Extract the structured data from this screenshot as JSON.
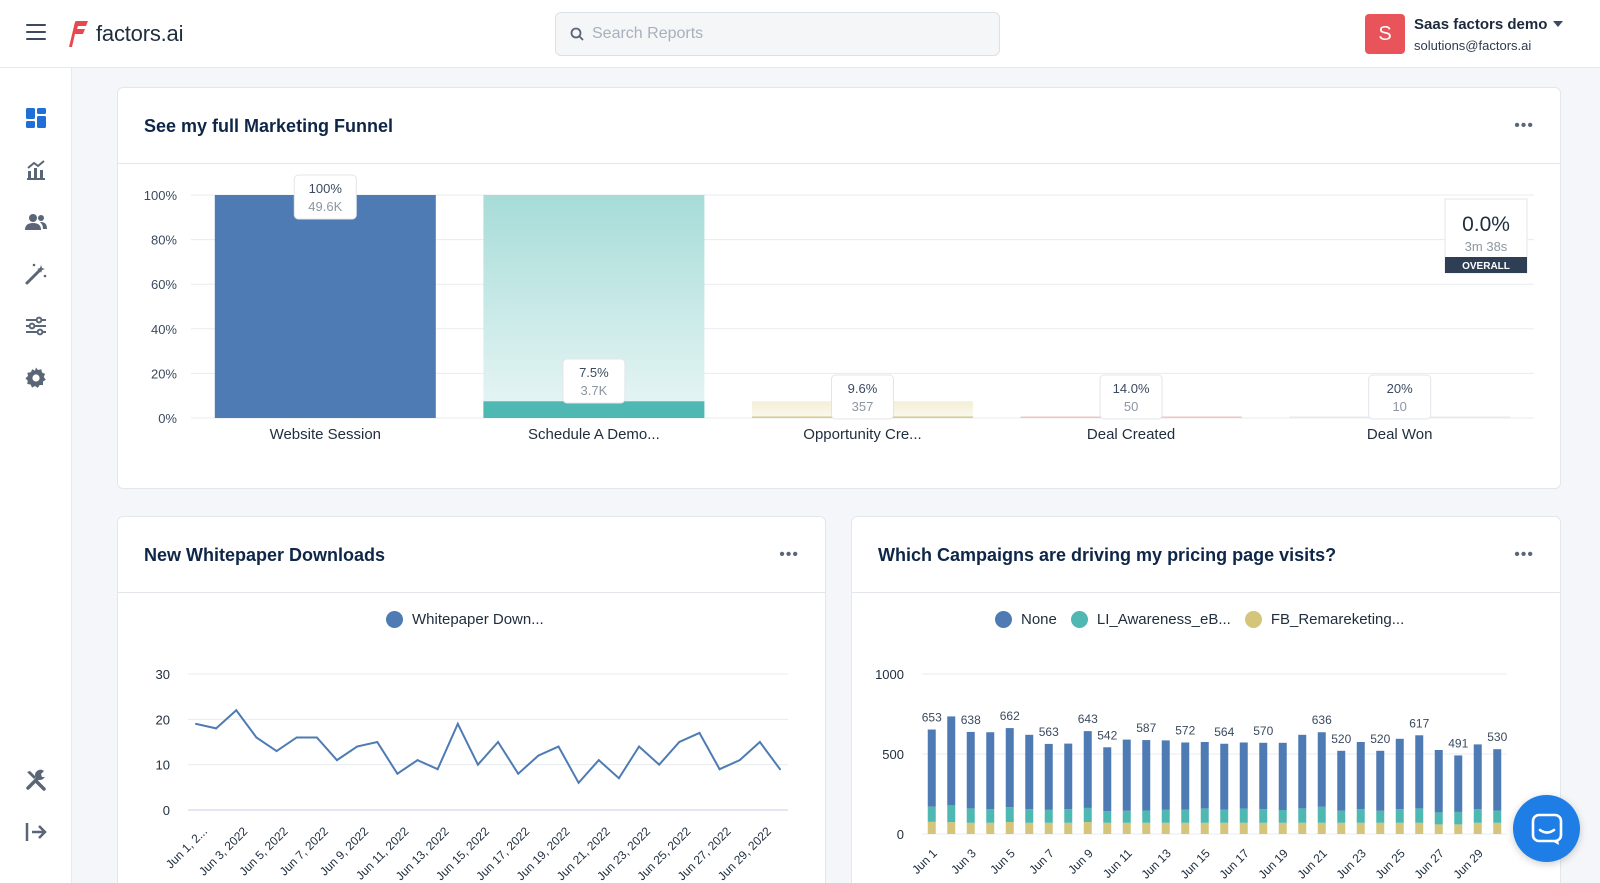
{
  "app": {
    "logo_text": "factors.ai",
    "search_placeholder": "Search Reports",
    "account_name": "Saas factors demo",
    "account_email": "solutions@factors.ai",
    "avatar_letter": "S",
    "avatar_color": "#e8545a"
  },
  "sidebar": {
    "items": [
      {
        "icon": "dashboard-icon",
        "active": true
      },
      {
        "icon": "analytics-icon"
      },
      {
        "icon": "users-icon"
      },
      {
        "icon": "magic-wand-icon"
      },
      {
        "icon": "sliders-icon"
      },
      {
        "icon": "gear-icon"
      },
      {
        "icon": "tools-icon"
      },
      {
        "icon": "logout-icon"
      }
    ]
  },
  "funnel_card": {
    "title": "See my full Marketing Funnel",
    "more_label": "•••",
    "overall": {
      "value": "0.0%",
      "time": "3m 38s",
      "label": "OVERALL"
    }
  },
  "whitepaper_card": {
    "title": "New Whitepaper Downloads",
    "more_label": "•••",
    "legend": "Whitepaper Down..."
  },
  "campaigns_card": {
    "title": "Which Campaigns are driving my pricing page visits?",
    "more_label": "•••",
    "legend": [
      "None",
      "LI_Awareness_eB...",
      "FB_Remareketing..."
    ]
  },
  "chart_data": [
    {
      "type": "bar",
      "title": "See my full Marketing Funnel",
      "categories": [
        "Website Session",
        "Schedule A Demo...",
        "Opportunity Cre...",
        "Deal Created",
        "Deal Won"
      ],
      "values": [
        100,
        7.5,
        0.7,
        0.1,
        0.02
      ],
      "bar_labels": [
        [
          "100%",
          "49.6K"
        ],
        [
          "7.5%",
          "3.7K"
        ],
        [
          "9.6%",
          "357"
        ],
        [
          "14.0%",
          "50"
        ],
        [
          "20%",
          "10"
        ]
      ],
      "colors": [
        "#4e7bb3",
        "#4fb8b2",
        "#d8cc8d",
        "#f0c6c3",
        "#e9e9e9"
      ],
      "yticks": [
        "100%",
        "80%",
        "60%",
        "40%",
        "20%",
        "0%"
      ],
      "ylim": [
        0,
        100
      ]
    },
    {
      "type": "line",
      "title": "New Whitepaper Downloads",
      "series": [
        {
          "name": "Whitepaper Down...",
          "values": [
            19,
            18,
            22,
            16,
            13,
            16,
            16,
            11,
            14,
            15,
            8,
            11,
            9,
            19,
            10,
            15,
            8,
            12,
            14,
            6,
            11,
            7,
            14,
            10,
            15,
            17,
            9,
            11,
            15,
            9
          ]
        }
      ],
      "x_tick_labels": [
        "Jun 1, 2...",
        "Jun 3, 2022",
        "Jun 5, 2022",
        "Jun 7, 2022",
        "Jun 9, 2022",
        "Jun 11, 2022",
        "Jun 13, 2022",
        "Jun 15, 2022",
        "Jun 17, 2022",
        "Jun 19, 2022",
        "Jun 21, 2022",
        "Jun 23, 2022",
        "Jun 25, 2022",
        "Jun 27, 2022",
        "Jun 29, 2022"
      ],
      "yticks": [
        30,
        20,
        10,
        0
      ],
      "ylim": [
        0,
        30
      ],
      "color": "#4e7bb3"
    },
    {
      "type": "bar",
      "title": "Which Campaigns are driving my pricing page visits?",
      "stacked": true,
      "categories_count": 30,
      "totals": [
        653,
        735,
        638,
        636,
        662,
        620,
        563,
        565,
        643,
        542,
        590,
        587,
        585,
        572,
        575,
        564,
        572,
        570,
        570,
        620,
        636,
        520,
        575,
        520,
        595,
        617,
        525,
        491,
        560,
        530
      ],
      "total_labels": [
        {
          "i": 0,
          "text": "653"
        },
        {
          "i": 2,
          "text": "638"
        },
        {
          "i": 4,
          "text": "662"
        },
        {
          "i": 6,
          "text": "563"
        },
        {
          "i": 8,
          "text": "643"
        },
        {
          "i": 9,
          "text": "542"
        },
        {
          "i": 11,
          "text": "587"
        },
        {
          "i": 13,
          "text": "572"
        },
        {
          "i": 15,
          "text": "564"
        },
        {
          "i": 17,
          "text": "570"
        },
        {
          "i": 20,
          "text": "636"
        },
        {
          "i": 21,
          "text": "520"
        },
        {
          "i": 23,
          "text": "520"
        },
        {
          "i": 25,
          "text": "617"
        },
        {
          "i": 27,
          "text": "491"
        },
        {
          "i": 29,
          "text": "530"
        }
      ],
      "series": [
        {
          "name": "None",
          "color": "#4e7bb3",
          "values": [
            482,
            556,
            478,
            480,
            495,
            465,
            410,
            410,
            480,
            400,
            445,
            440,
            432,
            420,
            415,
            412,
            413,
            415,
            420,
            460,
            466,
            375,
            420,
            375,
            440,
            457,
            390,
            353,
            405,
            383
          ]
        },
        {
          "name": "LI_Awareness_eB...",
          "color": "#4fb8b2",
          "values": [
            95,
            105,
            90,
            86,
            92,
            85,
            83,
            85,
            88,
            72,
            75,
            77,
            83,
            82,
            90,
            82,
            89,
            85,
            80,
            90,
            100,
            75,
            85,
            75,
            85,
            90,
            75,
            78,
            85,
            77
          ]
        },
        {
          "name": "FB_Remareketing...",
          "color": "#d4c57a",
          "values": [
            76,
            74,
            70,
            70,
            75,
            70,
            70,
            70,
            75,
            70,
            70,
            70,
            70,
            70,
            70,
            70,
            70,
            70,
            70,
            70,
            70,
            70,
            70,
            70,
            70,
            70,
            60,
            60,
            70,
            70
          ]
        }
      ],
      "x_tick_labels": [
        "Jun 1",
        "Jun 3",
        "Jun 5",
        "Jun 7",
        "Jun 9",
        "Jun 11",
        "Jun 13",
        "Jun 15",
        "Jun 17",
        "Jun 19",
        "Jun 21",
        "Jun 23",
        "Jun 25",
        "Jun 27",
        "Jun 29"
      ],
      "yticks": [
        1000,
        500,
        0
      ],
      "ylim": [
        0,
        1000
      ]
    }
  ]
}
